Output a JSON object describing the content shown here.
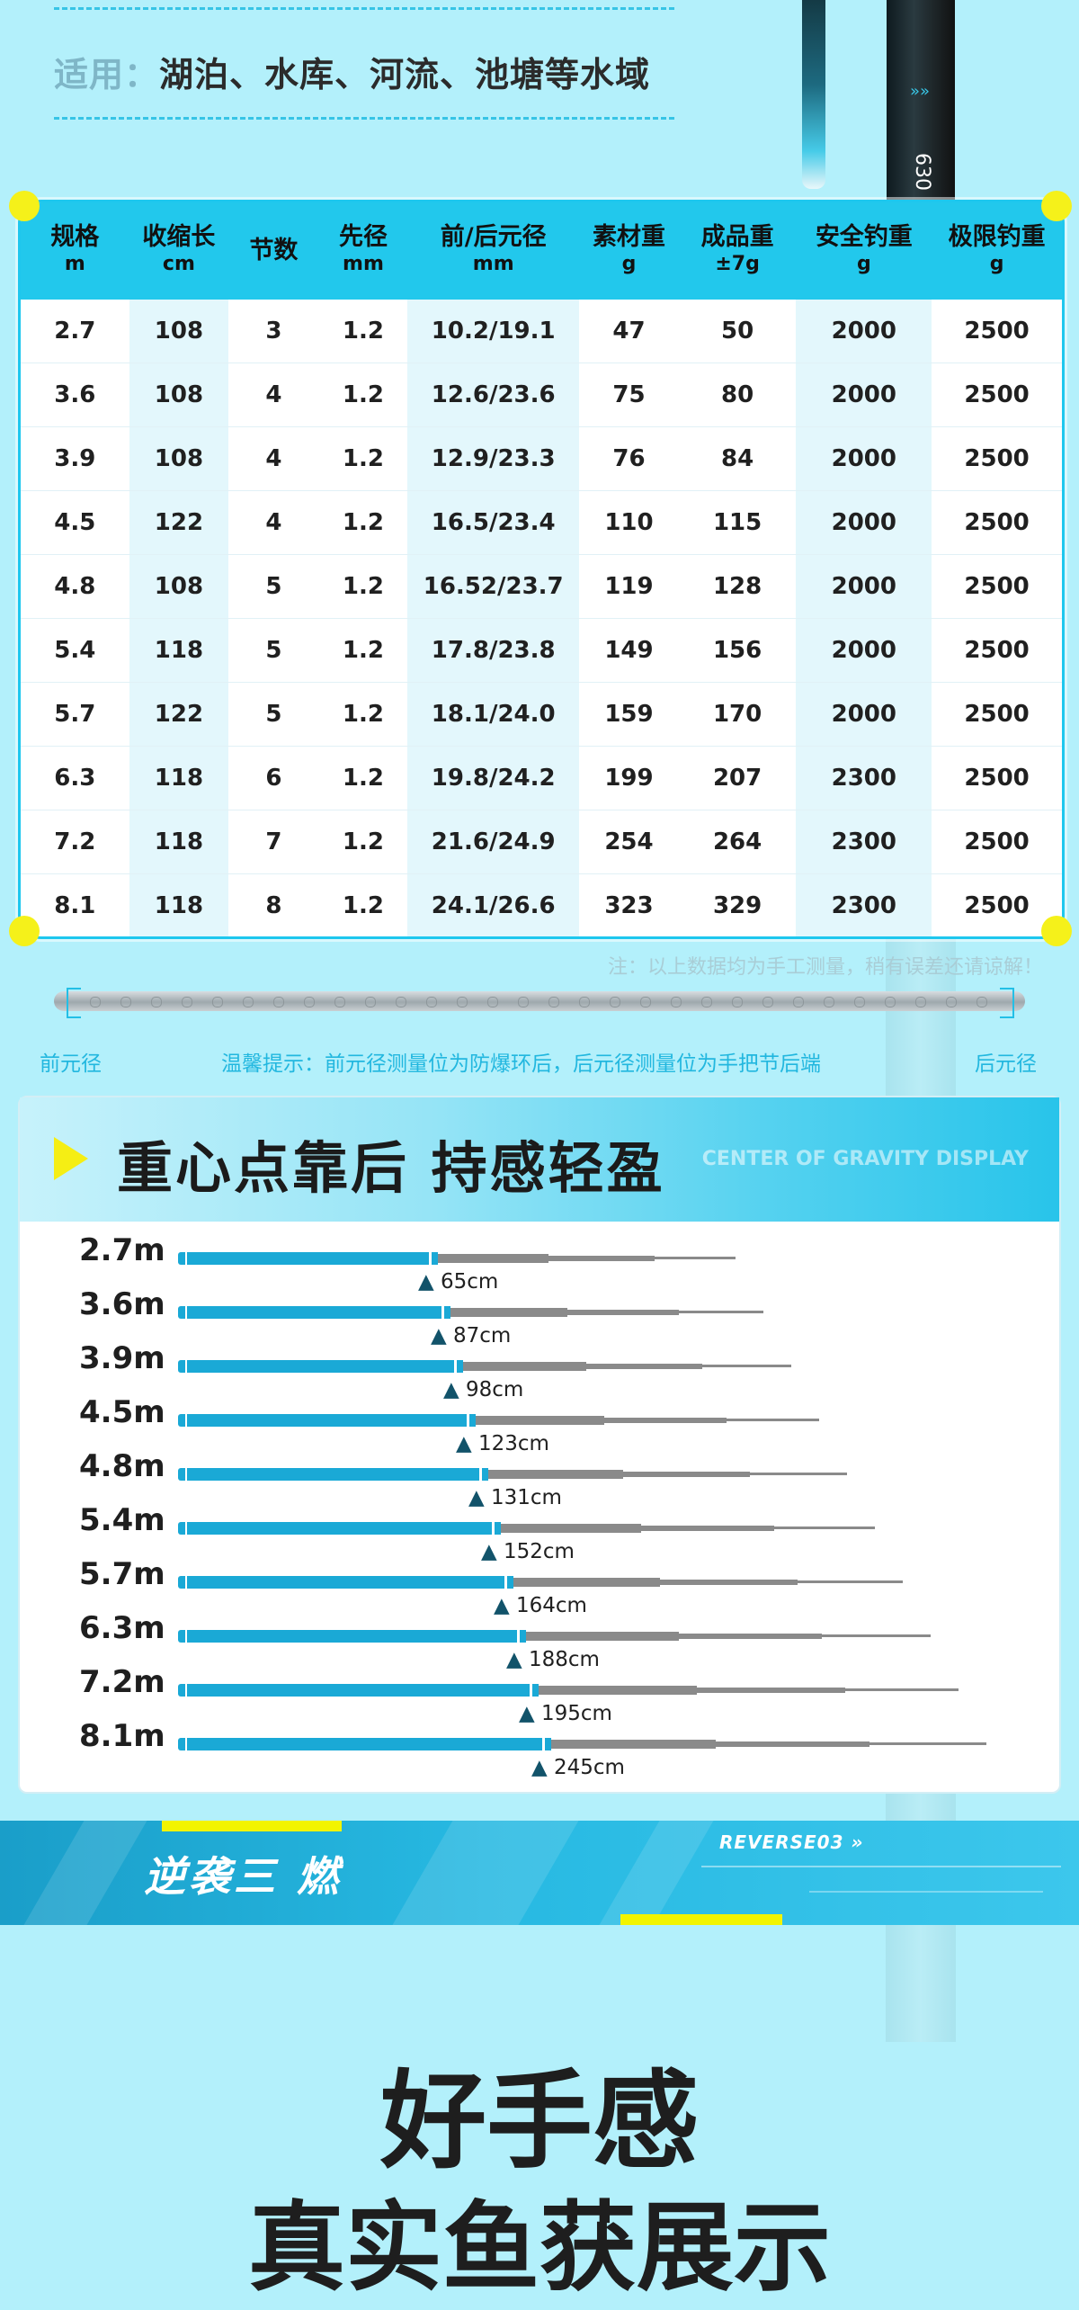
{
  "apply": {
    "label": "适用：",
    "text": "湖泊、水库、河流、池塘等水域"
  },
  "rod_marks": {
    "chevrons": "»»",
    "model": "630"
  },
  "spec_table": {
    "headers": [
      {
        "name": "规格",
        "unit": "m"
      },
      {
        "name": "收缩长",
        "unit": "cm"
      },
      {
        "name": "节数",
        "unit": ""
      },
      {
        "name": "先径",
        "unit": "mm"
      },
      {
        "name": "前/后元径",
        "unit": "mm"
      },
      {
        "name": "素材重",
        "unit": "g"
      },
      {
        "name": "成品重",
        "unit": "±7g"
      },
      {
        "name": "安全钓重",
        "unit": "g"
      },
      {
        "name": "极限钓重",
        "unit": "g"
      }
    ],
    "rows": [
      [
        "2.7",
        "108",
        "3",
        "1.2",
        "10.2/19.1",
        "47",
        "50",
        "2000",
        "2500"
      ],
      [
        "3.6",
        "108",
        "4",
        "1.2",
        "12.6/23.6",
        "75",
        "80",
        "2000",
        "2500"
      ],
      [
        "3.9",
        "108",
        "4",
        "1.2",
        "12.9/23.3",
        "76",
        "84",
        "2000",
        "2500"
      ],
      [
        "4.5",
        "122",
        "4",
        "1.2",
        "16.5/23.4",
        "110",
        "115",
        "2000",
        "2500"
      ],
      [
        "4.8",
        "108",
        "5",
        "1.2",
        "16.52/23.7",
        "119",
        "128",
        "2000",
        "2500"
      ],
      [
        "5.4",
        "118",
        "5",
        "1.2",
        "17.8/23.8",
        "149",
        "156",
        "2000",
        "2500"
      ],
      [
        "5.7",
        "122",
        "5",
        "1.2",
        "18.1/24.0",
        "159",
        "170",
        "2000",
        "2500"
      ],
      [
        "6.3",
        "118",
        "6",
        "1.2",
        "19.8/24.2",
        "199",
        "207",
        "2300",
        "2500"
      ],
      [
        "7.2",
        "118",
        "7",
        "1.2",
        "21.6/24.9",
        "254",
        "264",
        "2300",
        "2500"
      ],
      [
        "8.1",
        "118",
        "8",
        "1.2",
        "24.1/26.6",
        "323",
        "329",
        "2300",
        "2500"
      ]
    ],
    "note": "注：以上数据均为手工测量，稍有误差还请谅解！"
  },
  "rod_diagram": {
    "front_label": "前元径",
    "tip": "温馨提示：前元径测量位为防爆环后，后元径测量位为手把节后端",
    "rear_label": "后元径"
  },
  "gravity": {
    "title": "重心点靠后 持感轻盈",
    "subtitle_en": "CENTER OF GRAVITY DISPLAY",
    "rows": [
      {
        "length_label": "2.7m",
        "length_cm": 270,
        "cg_label": "65cm",
        "cg_cm": 65
      },
      {
        "length_label": "3.6m",
        "length_cm": 360,
        "cg_label": "87cm",
        "cg_cm": 87
      },
      {
        "length_label": "3.9m",
        "length_cm": 390,
        "cg_label": "98cm",
        "cg_cm": 98
      },
      {
        "length_label": "4.5m",
        "length_cm": 450,
        "cg_label": "123cm",
        "cg_cm": 123
      },
      {
        "length_label": "4.8m",
        "length_cm": 480,
        "cg_label": "131cm",
        "cg_cm": 131
      },
      {
        "length_label": "5.4m",
        "length_cm": 540,
        "cg_label": "152cm",
        "cg_cm": 152
      },
      {
        "length_label": "5.7m",
        "length_cm": 570,
        "cg_label": "164cm",
        "cg_cm": 164
      },
      {
        "length_label": "6.3m",
        "length_cm": 630,
        "cg_label": "188cm",
        "cg_cm": 188
      },
      {
        "length_label": "7.2m",
        "length_cm": 720,
        "cg_label": "195cm",
        "cg_cm": 195
      },
      {
        "length_label": "8.1m",
        "length_cm": 810,
        "cg_label": "245cm",
        "cg_cm": 245
      }
    ]
  },
  "banner": {
    "logo": "逆袭三 燃",
    "series": "REVERSE03 »"
  },
  "headline": {
    "line1": "好手感",
    "line2": "真实鱼获展示"
  },
  "colors": {
    "accent": "#22c8ec",
    "highlight": "#f5ee14",
    "bar_blue": "#1aa9d6",
    "bar_grey": "#8a8a8a"
  }
}
